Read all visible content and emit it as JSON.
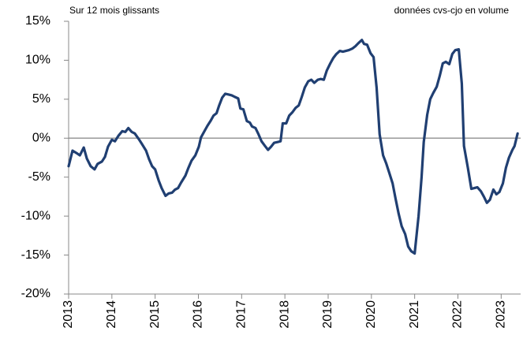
{
  "chart_data": {
    "type": "line",
    "annotations": [
      "Sur 12 mois glissants",
      "données cvs-cjo en volume"
    ],
    "x": [
      2013.0,
      2013.09,
      2013.18,
      2013.26,
      2013.35,
      2013.42,
      2013.51,
      2013.6,
      2013.67,
      2013.77,
      2013.84,
      2013.91,
      2014.0,
      2014.07,
      2014.15,
      2014.24,
      2014.31,
      2014.38,
      2014.46,
      2014.53,
      2014.62,
      2014.69,
      2014.79,
      2014.86,
      2014.93,
      2015.0,
      2015.08,
      2015.15,
      2015.24,
      2015.31,
      2015.39,
      2015.46,
      2015.53,
      2015.6,
      2015.7,
      2015.77,
      2015.84,
      2015.93,
      2016.01,
      2016.06,
      2016.15,
      2016.21,
      2016.28,
      2016.35,
      2016.42,
      2016.48,
      2016.55,
      2016.62,
      2016.7,
      2016.77,
      2016.84,
      2016.92,
      2016.97,
      2017.04,
      2017.12,
      2017.19,
      2017.24,
      2017.32,
      2017.39,
      2017.46,
      2017.54,
      2017.61,
      2017.68,
      2017.75,
      2017.83,
      2017.9,
      2017.95,
      2018.03,
      2018.1,
      2018.17,
      2018.25,
      2018.32,
      2018.39,
      2018.46,
      2018.54,
      2018.61,
      2018.68,
      2018.76,
      2018.83,
      2018.9,
      2018.97,
      2019.05,
      2019.12,
      2019.19,
      2019.27,
      2019.34,
      2019.41,
      2019.48,
      2019.56,
      2019.63,
      2019.7,
      2019.78,
      2019.83,
      2019.9,
      2019.98,
      2020.05,
      2020.12,
      2020.19,
      2020.27,
      2020.34,
      2020.41,
      2020.49,
      2020.56,
      2020.63,
      2020.7,
      2020.78,
      2020.85,
      2020.92,
      2021.0,
      2021.09,
      2021.16,
      2021.21,
      2021.29,
      2021.36,
      2021.43,
      2021.51,
      2021.58,
      2021.65,
      2021.72,
      2021.8,
      2021.87,
      2021.94,
      2022.02,
      2022.09,
      2022.14,
      2022.23,
      2022.31,
      2022.38,
      2022.45,
      2022.53,
      2022.6,
      2022.67,
      2022.74,
      2022.82,
      2022.89,
      2022.96,
      2023.04,
      2023.11,
      2023.18,
      2023.26,
      2023.31,
      2023.38
    ],
    "series": [
      {
        "color": "#203f72",
        "values": [
          -3.6,
          -1.6,
          -1.9,
          -2.2,
          -1.2,
          -2.6,
          -3.6,
          -4.0,
          -3.3,
          -3.0,
          -2.4,
          -1.1,
          -0.2,
          -0.4,
          0.3,
          0.9,
          0.8,
          1.3,
          0.8,
          0.6,
          -0.1,
          -0.7,
          -1.6,
          -2.7,
          -3.6,
          -4.0,
          -5.4,
          -6.4,
          -7.4,
          -7.1,
          -7.0,
          -6.6,
          -6.4,
          -5.7,
          -4.8,
          -3.8,
          -2.9,
          -2.2,
          -1.1,
          0.1,
          1.0,
          1.6,
          2.2,
          2.9,
          3.2,
          4.2,
          5.2,
          5.7,
          5.6,
          5.5,
          5.3,
          5.1,
          3.8,
          3.7,
          2.2,
          2.0,
          1.5,
          1.3,
          0.5,
          -0.4,
          -1.0,
          -1.5,
          -1.1,
          -0.6,
          -0.5,
          -0.4,
          1.9,
          1.9,
          2.9,
          3.3,
          3.9,
          4.2,
          5.3,
          6.5,
          7.3,
          7.5,
          7.1,
          7.5,
          7.6,
          7.5,
          8.7,
          9.6,
          10.3,
          10.8,
          11.2,
          11.1,
          11.2,
          11.3,
          11.5,
          11.8,
          12.2,
          12.6,
          12.1,
          12.0,
          10.9,
          10.4,
          6.5,
          0.5,
          -2.2,
          -3.2,
          -4.4,
          -5.8,
          -7.8,
          -9.7,
          -11.3,
          -12.3,
          -13.9,
          -14.5,
          -14.8,
          -10.0,
          -5.0,
          -0.5,
          3.0,
          5.0,
          5.8,
          6.6,
          8.0,
          9.6,
          9.8,
          9.5,
          10.8,
          11.3,
          11.4,
          7.0,
          -1.0,
          -3.8,
          -6.5,
          -6.4,
          -6.3,
          -6.8,
          -7.5,
          -8.3,
          -7.9,
          -6.6,
          -7.2,
          -6.9,
          -5.8,
          -3.8,
          -2.5,
          -1.5,
          -1.0,
          0.6
        ]
      }
    ],
    "xlim": [
      2013,
      2023.45
    ],
    "xticks": [
      2013,
      2014,
      2015,
      2016,
      2017,
      2018,
      2019,
      2020,
      2021,
      2022,
      2023
    ],
    "ylim": [
      -20,
      15
    ],
    "yticks": [
      {
        "value": -20,
        "label": "-20%"
      },
      {
        "value": -15,
        "label": "-15%"
      },
      {
        "value": -10,
        "label": "-10%"
      },
      {
        "value": -5,
        "label": "-5%"
      },
      {
        "value": 0,
        "label": "0%"
      },
      {
        "value": 5,
        "label": "5%"
      },
      {
        "value": 10,
        "label": "10%"
      },
      {
        "value": 15,
        "label": "15%"
      }
    ]
  }
}
